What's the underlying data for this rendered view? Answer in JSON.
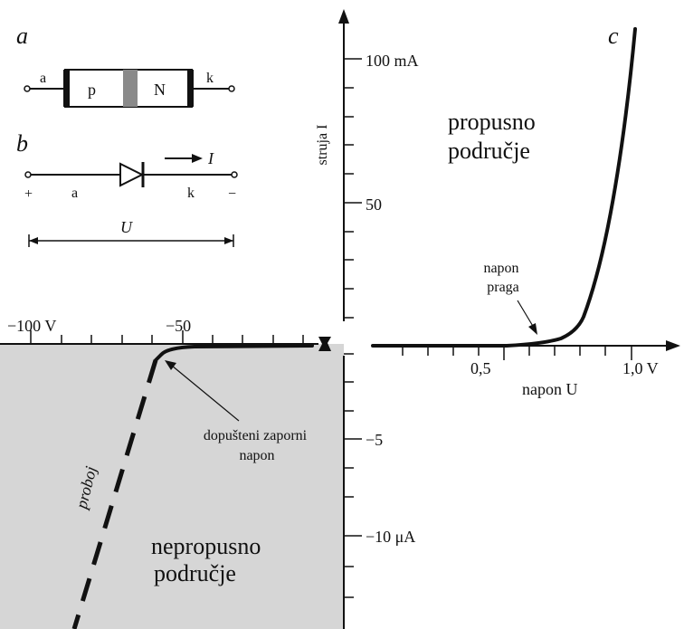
{
  "panels": {
    "a": "a",
    "b": "b",
    "c": "c"
  },
  "pn_block": {
    "left": "a",
    "p": "p",
    "n": "N",
    "right": "k"
  },
  "diode_symbol": {
    "plus": "+",
    "minus": "−",
    "anode": "a",
    "cathode": "k",
    "current": "I",
    "voltage": "U"
  },
  "axes": {
    "y_label": "struja I",
    "y_ticks_forward": [
      "100 mA",
      "50"
    ],
    "y_ticks_reverse": [
      "−5",
      "−10 μA"
    ],
    "x_ticks_reverse": [
      "−100 V",
      "−50"
    ],
    "x_ticks_forward": [
      "0,5",
      "1,0 V"
    ],
    "x_label": "napon U"
  },
  "labels": {
    "forward_region": [
      "propusno",
      "područje"
    ],
    "reverse_region": [
      "nepropusno",
      "područje"
    ],
    "threshold": [
      "napon",
      "praga"
    ],
    "reverse_voltage": [
      "dopušteni zaporni",
      "napon"
    ],
    "breakdown": "proboj"
  },
  "colors": {
    "reverse_region_fill": "#d6d6d6",
    "ink": "#111111"
  }
}
